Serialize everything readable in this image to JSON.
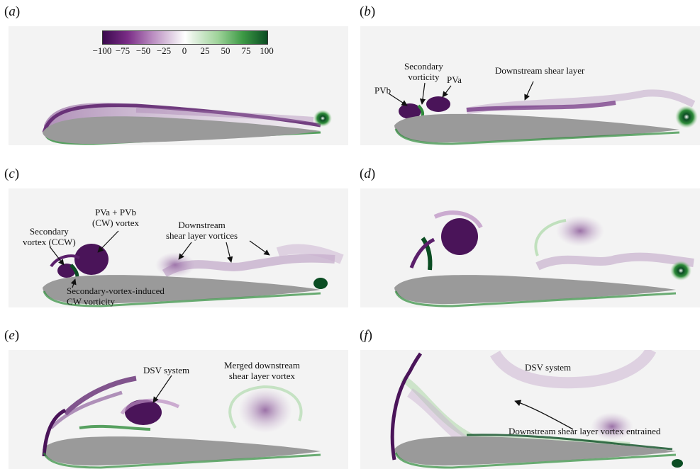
{
  "panels": [
    {
      "id": "a",
      "label": "a"
    },
    {
      "id": "b",
      "label": "b"
    },
    {
      "id": "c",
      "label": "c"
    },
    {
      "id": "d",
      "label": "d"
    },
    {
      "id": "e",
      "label": "e"
    },
    {
      "id": "f",
      "label": "f"
    }
  ],
  "colorbar": {
    "ticks": [
      "−100",
      "−75",
      "−50",
      "−25",
      "0",
      "25",
      "50",
      "75",
      "100"
    ],
    "colors": {
      "neg": "#4a1459",
      "mid": "#ffffff",
      "pos": "#0b4d23"
    }
  },
  "annotations": {
    "b": {
      "pvb": "PVb",
      "secondary_vorticity": [
        "Secondary",
        "vorticity"
      ],
      "pva": "PVa",
      "downstream_shear_layer": "Downstream shear layer"
    },
    "c": {
      "pva_pvb": [
        "PVa + PVb",
        "(CW) vortex"
      ],
      "secondary_vortex": [
        "Secondary",
        "vortex (CCW)"
      ],
      "downstream_vortices": [
        "Downstream",
        "shear layer vortices"
      ],
      "induced": [
        "Secondary-vortex-induced",
        "CW vorticity"
      ]
    },
    "e": {
      "dsv_system": "DSV system",
      "merged": [
        "Merged downstream",
        "shear layer vortex"
      ]
    },
    "f": {
      "dsv_system": "DSV system",
      "entrained": "Downstream shear layer vortex entrained"
    }
  },
  "colors": {
    "airfoil": "#9a9a9a",
    "background": "#f3f3f3",
    "purple": "#5b1f6b",
    "green": "#2e8b3a"
  }
}
